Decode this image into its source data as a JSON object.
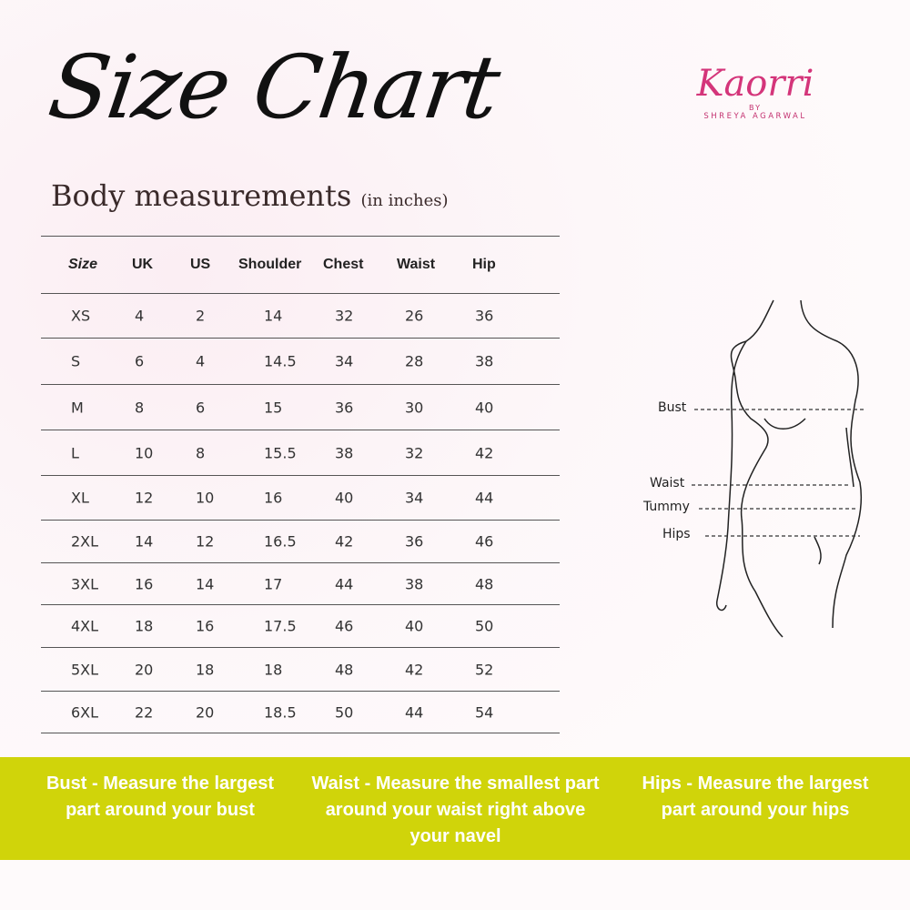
{
  "title": "Size Chart",
  "logo": {
    "name": "Kaorri",
    "by": "BY",
    "sub": "SHREYA AGARWAL"
  },
  "subtitle": {
    "main": "Body measurements",
    "unit": "(in inches)"
  },
  "table": {
    "headers": [
      "Size",
      "UK",
      "US",
      "Shoulder",
      "Chest",
      "Waist",
      "Hip"
    ],
    "rows": [
      [
        "XS",
        "4",
        "2",
        "14",
        "32",
        "26",
        "36"
      ],
      [
        "S",
        "6",
        "4",
        "14.5",
        "34",
        "28",
        "38"
      ],
      [
        "M",
        "8",
        "6",
        "15",
        "36",
        "30",
        "40"
      ],
      [
        "L",
        "10",
        "8",
        "15.5",
        "38",
        "32",
        "42"
      ],
      [
        "XL",
        "12",
        "10",
        "16",
        "40",
        "34",
        "44"
      ],
      [
        "2XL",
        "14",
        "12",
        "16.5",
        "42",
        "36",
        "46"
      ],
      [
        "3XL",
        "16",
        "14",
        "17",
        "44",
        "38",
        "48"
      ],
      [
        "4XL",
        "18",
        "16",
        "17.5",
        "46",
        "40",
        "50"
      ],
      [
        "5XL",
        "20",
        "18",
        "18",
        "48",
        "42",
        "52"
      ],
      [
        "6XL",
        "22",
        "20",
        "18.5",
        "50",
        "44",
        "54"
      ]
    ]
  },
  "figure_labels": [
    "Bust",
    "Waist",
    "Tummy",
    "Hips"
  ],
  "tips": [
    {
      "term": "Bust -",
      "text": "Measure the largest part around your bust"
    },
    {
      "term": "Waist -",
      "text": "Measure the smallest part around your waist right above your navel"
    },
    {
      "term": "Hips -",
      "text": "Measure the largest part around your hips"
    }
  ],
  "colors": {
    "band": "#d0d40a",
    "logo": "#d4357a"
  }
}
